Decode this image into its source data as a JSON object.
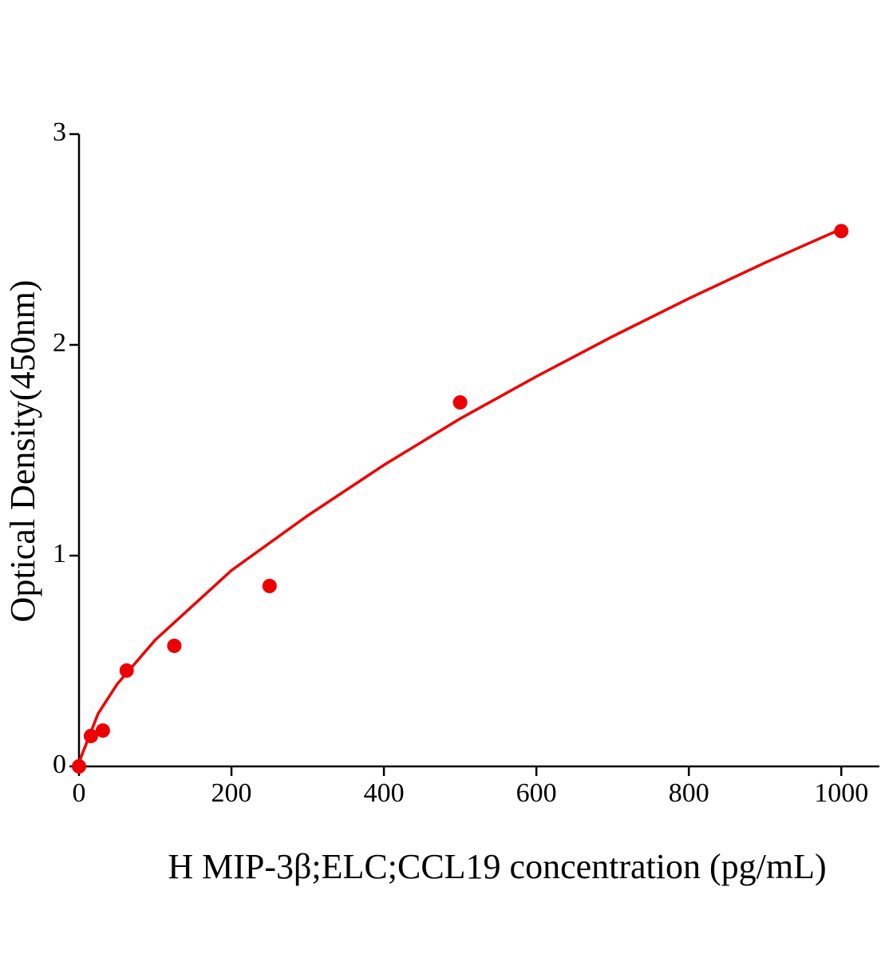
{
  "chart_data": {
    "type": "scatter",
    "x_label": "H MIP-3β;ELC;CCL19 concentration (pg/mL)",
    "y_label": "Optical Density(450nm)",
    "xlim": [
      0,
      1050
    ],
    "ylim": [
      0,
      3
    ],
    "xticks": [
      0,
      200,
      400,
      600,
      800,
      1000
    ],
    "yticks": [
      0,
      1,
      2,
      3
    ],
    "grid": false,
    "series": [
      {
        "type": "scatter",
        "color": "#ee0000",
        "x": [
          0,
          15.6,
          31.25,
          62.5,
          125,
          250,
          500,
          1000
        ],
        "values": [
          0,
          0.144,
          0.17,
          0.455,
          0.572,
          0.856,
          1.727,
          2.54
        ]
      },
      {
        "type": "line",
        "color": "#ee0000",
        "x": [
          0,
          25,
          50,
          100,
          200,
          300,
          400,
          500,
          600,
          700,
          800,
          900,
          1000
        ],
        "values": [
          0.02,
          0.25,
          0.39,
          0.6,
          0.93,
          1.19,
          1.43,
          1.65,
          1.85,
          2.04,
          2.22,
          2.39,
          2.55
        ]
      }
    ]
  }
}
